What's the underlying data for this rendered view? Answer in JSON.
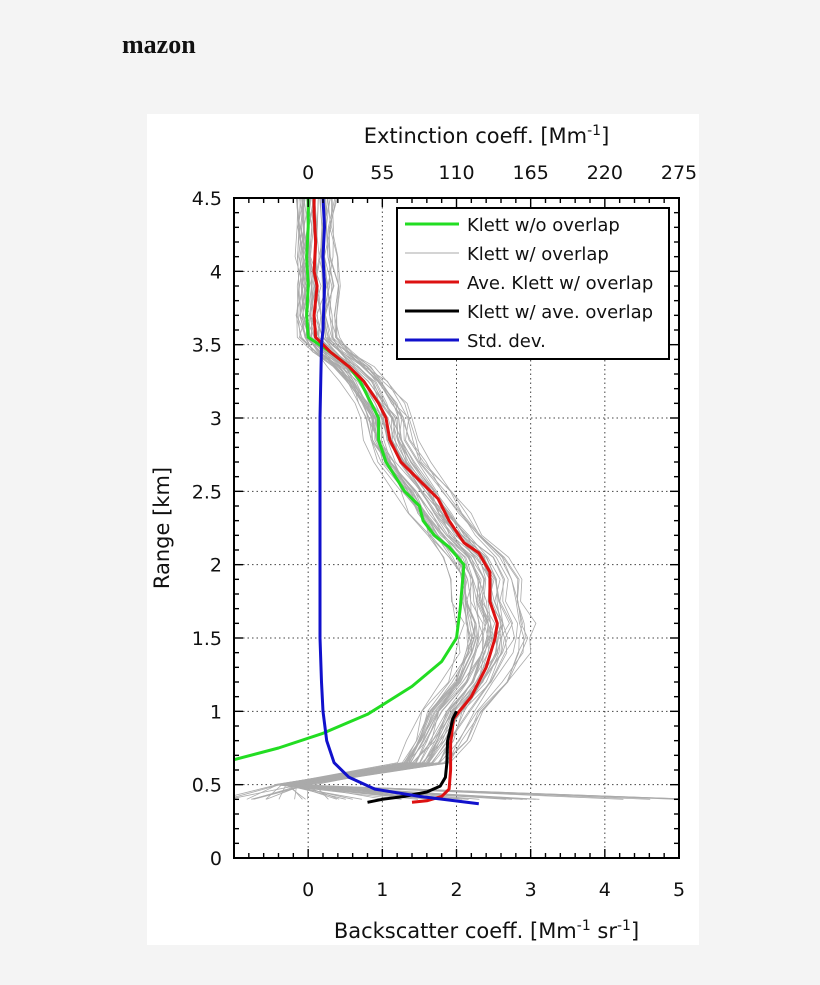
{
  "page": {
    "title": "mazon"
  },
  "chart_data": {
    "type": "line",
    "xlabel_bottom": "Backscatter coeff. [Mm",
    "xlabel_bottom_sup1": "-1",
    "xlabel_bottom_mid": " sr",
    "xlabel_bottom_sup2": "-1",
    "xlabel_bottom_end": "]",
    "xlabel_top": "Extinction coeff. [Mm",
    "xlabel_top_sup": "-1",
    "xlabel_top_end": "]",
    "ylabel": "Range [km]",
    "xlim": [
      -1,
      5
    ],
    "ylim": [
      0,
      4.5
    ],
    "x_ticks_bottom": [
      0,
      1,
      2,
      3,
      4,
      5
    ],
    "x_ticks_top": [
      0,
      55,
      110,
      165,
      220,
      275
    ],
    "y_ticks": [
      0,
      0.5,
      1,
      1.5,
      2,
      2.5,
      3,
      3.5,
      4,
      4.5
    ],
    "y_tick_labels": [
      "0",
      "0.5",
      "1",
      "1.5",
      "2",
      "2.5",
      "3",
      "3.5",
      "4",
      "4.5"
    ],
    "grid": true,
    "legend_position": "top-right",
    "legend": [
      {
        "label": "Klett w/o overlap",
        "color": "#22dd22"
      },
      {
        "label": "Klett w/ overlap",
        "color": "#aaaaaa"
      },
      {
        "label": "Ave. Klett w/ overlap",
        "color": "#dd1111"
      },
      {
        "label": "Klett w/ ave. overlap",
        "color": "#000000"
      },
      {
        "label": "Std. dev.",
        "color": "#1111cc"
      }
    ],
    "series": [
      {
        "name": "Klett w/o overlap",
        "color": "#22dd22",
        "points": [
          [
            -1.0,
            0.67
          ],
          [
            -0.4,
            0.75
          ],
          [
            0.2,
            0.85
          ],
          [
            0.8,
            0.98
          ],
          [
            1.4,
            1.17
          ],
          [
            1.8,
            1.34
          ],
          [
            2.0,
            1.5
          ],
          [
            2.05,
            1.7
          ],
          [
            2.1,
            2.0
          ],
          [
            1.9,
            2.12
          ],
          [
            1.7,
            2.2
          ],
          [
            1.55,
            2.3
          ],
          [
            1.5,
            2.4
          ],
          [
            1.3,
            2.5
          ],
          [
            1.05,
            2.7
          ],
          [
            0.95,
            2.85
          ],
          [
            0.95,
            3.0
          ],
          [
            0.85,
            3.1
          ],
          [
            0.7,
            3.25
          ],
          [
            0.55,
            3.35
          ],
          [
            0.3,
            3.45
          ],
          [
            0.0,
            3.55
          ],
          [
            -0.02,
            3.7
          ],
          [
            0.0,
            3.9
          ],
          [
            -0.02,
            4.1
          ],
          [
            0.0,
            4.3
          ],
          [
            0.0,
            4.5
          ]
        ]
      },
      {
        "name": "Ave. Klett w/ overlap",
        "color": "#dd1111",
        "points": [
          [
            1.4,
            0.38
          ],
          [
            1.6,
            0.39
          ],
          [
            1.8,
            0.42
          ],
          [
            1.9,
            0.47
          ],
          [
            1.92,
            0.6
          ],
          [
            1.92,
            0.78
          ],
          [
            1.96,
            0.95
          ],
          [
            2.2,
            1.1
          ],
          [
            2.4,
            1.3
          ],
          [
            2.52,
            1.5
          ],
          [
            2.55,
            1.6
          ],
          [
            2.45,
            1.75
          ],
          [
            2.45,
            1.95
          ],
          [
            2.3,
            2.08
          ],
          [
            2.1,
            2.15
          ],
          [
            1.9,
            2.3
          ],
          [
            1.75,
            2.45
          ],
          [
            1.55,
            2.55
          ],
          [
            1.25,
            2.7
          ],
          [
            1.1,
            2.85
          ],
          [
            1.05,
            3.0
          ],
          [
            0.95,
            3.1
          ],
          [
            0.75,
            3.25
          ],
          [
            0.55,
            3.35
          ],
          [
            0.3,
            3.45
          ],
          [
            0.1,
            3.55
          ],
          [
            0.08,
            3.7
          ],
          [
            0.12,
            3.9
          ],
          [
            0.08,
            4.0
          ],
          [
            0.1,
            4.2
          ],
          [
            0.08,
            4.4
          ],
          [
            0.08,
            4.5
          ]
        ]
      },
      {
        "name": "Klett w/ ave. overlap",
        "color": "#000000",
        "points": [
          [
            0.8,
            0.38
          ],
          [
            1.0,
            0.4
          ],
          [
            1.3,
            0.42
          ],
          [
            1.6,
            0.45
          ],
          [
            1.78,
            0.49
          ],
          [
            1.85,
            0.55
          ],
          [
            1.87,
            0.65
          ],
          [
            1.88,
            0.8
          ],
          [
            1.95,
            0.95
          ],
          [
            2.0,
            1.0
          ]
        ]
      },
      {
        "name": "Std. dev.",
        "color": "#1111cc",
        "points": [
          [
            2.3,
            0.37
          ],
          [
            1.5,
            0.42
          ],
          [
            0.9,
            0.47
          ],
          [
            0.55,
            0.55
          ],
          [
            0.35,
            0.65
          ],
          [
            0.25,
            0.8
          ],
          [
            0.2,
            1.0
          ],
          [
            0.18,
            1.2
          ],
          [
            0.16,
            1.5
          ],
          [
            0.16,
            2.0
          ],
          [
            0.16,
            2.5
          ],
          [
            0.16,
            3.0
          ],
          [
            0.18,
            3.5
          ],
          [
            0.2,
            3.6
          ],
          [
            0.22,
            3.9
          ],
          [
            0.2,
            4.1
          ],
          [
            0.22,
            4.3
          ],
          [
            0.2,
            4.5
          ]
        ]
      }
    ],
    "gray_ensemble": {
      "name": "Klett w/ overlap",
      "color": "#aaaaaa",
      "profile": [
        [
          0.4,
          -1.2
        ],
        [
          0.5,
          -0.2
        ],
        [
          0.65,
          1.6
        ],
        [
          0.8,
          1.8
        ],
        [
          1.0,
          2.0
        ],
        [
          1.2,
          2.3
        ],
        [
          1.4,
          2.5
        ],
        [
          1.5,
          2.55
        ],
        [
          1.6,
          2.55
        ],
        [
          1.75,
          2.45
        ],
        [
          1.9,
          2.45
        ],
        [
          2.05,
          2.3
        ],
        [
          2.2,
          2.0
        ],
        [
          2.35,
          1.8
        ],
        [
          2.5,
          1.6
        ],
        [
          2.7,
          1.3
        ],
        [
          2.85,
          1.15
        ],
        [
          3.0,
          1.1
        ],
        [
          3.1,
          1.0
        ],
        [
          3.25,
          0.8
        ],
        [
          3.35,
          0.6
        ],
        [
          3.45,
          0.35
        ],
        [
          3.55,
          0.15
        ],
        [
          3.7,
          0.12
        ],
        [
          3.9,
          0.15
        ],
        [
          4.1,
          0.12
        ],
        [
          4.3,
          0.12
        ],
        [
          4.5,
          0.12
        ]
      ]
    }
  }
}
